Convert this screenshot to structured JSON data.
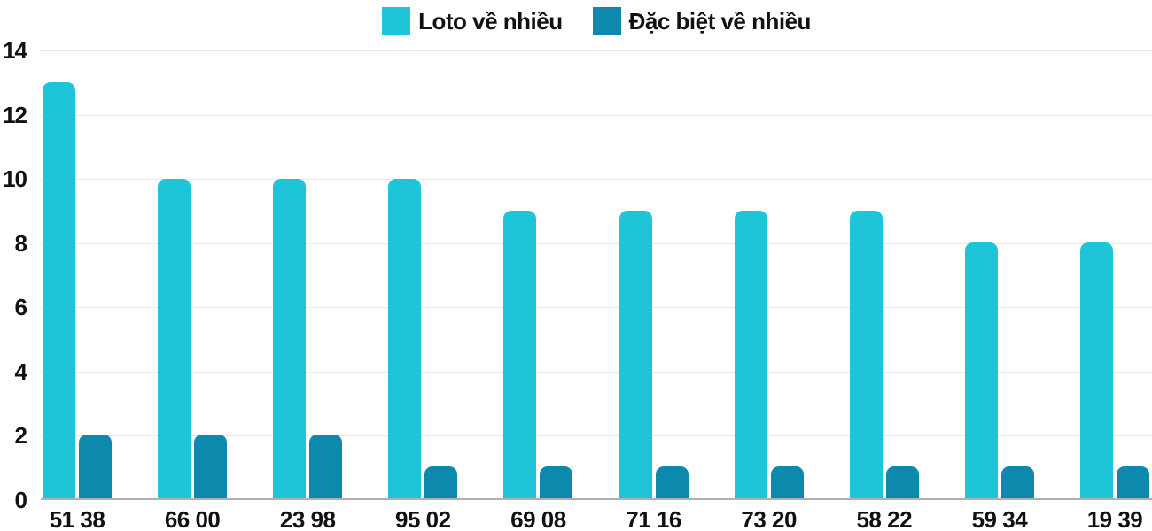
{
  "chart_data": {
    "type": "bar",
    "title": "",
    "categories": [
      "51 38",
      "66 00",
      "23 98",
      "95 02",
      "69 08",
      "71 16",
      "73 20",
      "58 22",
      "59 34",
      "19 39"
    ],
    "series": [
      {
        "name": "Loto về nhiều",
        "color": "#1ec5d8",
        "values": [
          13,
          10,
          10,
          10,
          9,
          9,
          9,
          9,
          8,
          8
        ]
      },
      {
        "name": "Đặc biệt về nhiều",
        "color": "#0d89ad",
        "values": [
          2,
          2,
          2,
          1,
          1,
          1,
          1,
          1,
          1,
          1
        ]
      }
    ],
    "xlabel": "",
    "ylabel": "",
    "ylim": [
      0,
      14
    ],
    "yticks": [
      0,
      2,
      4,
      6,
      8,
      10,
      12,
      14
    ],
    "grid": true,
    "legend_position": "top"
  },
  "legend": {
    "items": [
      {
        "label": "Loto về nhiều",
        "color": "#1ec5d8"
      },
      {
        "label": "Đặc biệt về nhiều",
        "color": "#0d89ad"
      }
    ]
  },
  "colors": {
    "background": "#ffffff",
    "grid_line": "#e8e8e8",
    "axis_line": "#b0b0b0",
    "text": "#111111"
  }
}
